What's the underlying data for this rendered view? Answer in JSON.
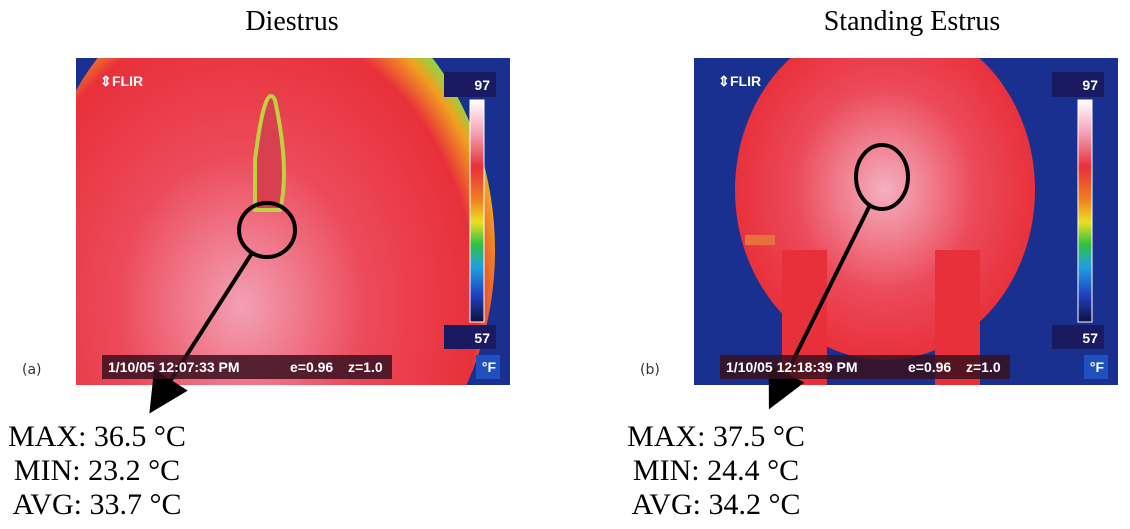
{
  "panels": [
    {
      "label": "(a)",
      "title": "Diestrus",
      "logo": "FLIR",
      "scale_max": 97,
      "scale_min": 57,
      "scale_unit": "°F",
      "timestamp": "1/10/05 12:07:33 PM",
      "emissivity": "e=0.96",
      "zoom": "z=1.0",
      "stats": [
        {
          "label": "MAX:",
          "value": 36.5,
          "unit": "°C"
        },
        {
          "label": "MIN:",
          "value": 23.2,
          "unit": "°C"
        },
        {
          "label": "AVG:",
          "value": 33.7,
          "unit": "°C"
        }
      ]
    },
    {
      "label": "(b)",
      "title": "Standing Estrus",
      "logo": "FLIR",
      "scale_max": 97,
      "scale_min": 57,
      "scale_unit": "°F",
      "timestamp": "1/10/05 12:18:39 PM",
      "emissivity": "e=0.96",
      "zoom": "z=1.0",
      "stats": [
        {
          "label": "MAX:",
          "value": 37.5,
          "unit": "°C"
        },
        {
          "label": "MIN:",
          "value": 24.4,
          "unit": "°C"
        },
        {
          "label": "AVG:",
          "value": 34.2,
          "unit": "°C"
        }
      ]
    }
  ]
}
